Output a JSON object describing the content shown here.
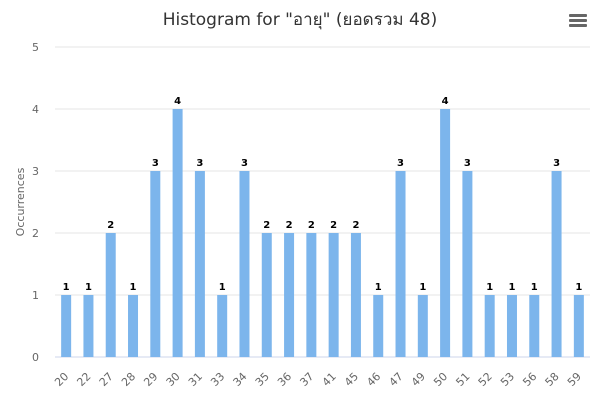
{
  "chart_data": {
    "type": "bar",
    "title": "Histogram for \"อายุ\" (ยอดรวม 48)",
    "xlabel": "",
    "ylabel": "Occurrences",
    "categories": [
      "20",
      "22",
      "27",
      "28",
      "29",
      "30",
      "31",
      "33",
      "34",
      "35",
      "36",
      "37",
      "41",
      "45",
      "46",
      "47",
      "49",
      "50",
      "51",
      "52",
      "53",
      "56",
      "58",
      "59"
    ],
    "values": [
      1,
      1,
      2,
      1,
      3,
      4,
      3,
      1,
      3,
      2,
      2,
      2,
      2,
      2,
      1,
      3,
      1,
      4,
      3,
      1,
      1,
      1,
      3,
      1
    ],
    "ylim": [
      0,
      5
    ],
    "yticks": [
      0,
      1,
      2,
      3,
      4,
      5
    ],
    "grid": true,
    "legend": "none",
    "bar_color": "#7cb5ec"
  },
  "menu": {
    "icon": "hamburger-menu-icon"
  }
}
